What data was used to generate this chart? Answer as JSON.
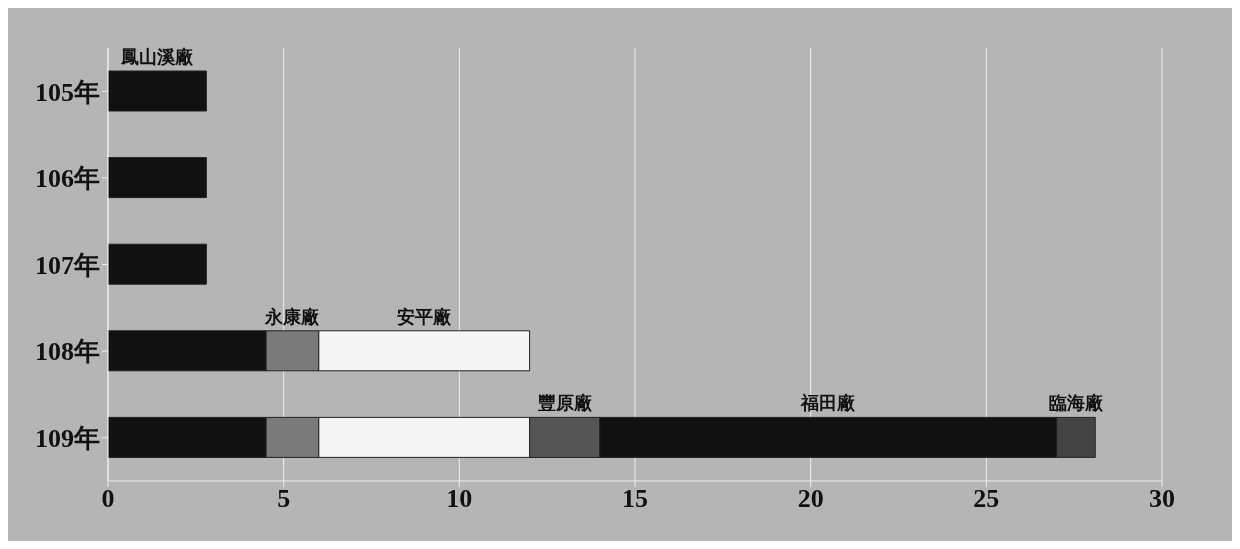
{
  "chart_data": {
    "type": "bar",
    "orientation": "horizontal",
    "stacked": true,
    "categories": [
      "105年",
      "106年",
      "107年",
      "108年",
      "109年"
    ],
    "series": [
      {
        "name": "鳳山溪廠",
        "color": "#111111",
        "values": [
          2.8,
          2.8,
          2.8,
          4.5,
          4.5
        ]
      },
      {
        "name": "永康廠",
        "color": "#7a7a7a",
        "values": [
          null,
          null,
          null,
          1.5,
          1.5
        ]
      },
      {
        "name": "安平廠",
        "color": "#f5f5f5",
        "values": [
          null,
          null,
          null,
          6,
          6
        ]
      },
      {
        "name": "豐原廠",
        "color": "#555555",
        "values": [
          null,
          null,
          null,
          null,
          2
        ]
      },
      {
        "name": "福田廠",
        "color": "#111111",
        "values": [
          null,
          null,
          null,
          null,
          13
        ]
      },
      {
        "name": "臨海廠",
        "color": "#444444",
        "values": [
          null,
          null,
          null,
          null,
          1.1
        ]
      }
    ],
    "xlim": [
      0,
      30
    ],
    "xticks": [
      0,
      5,
      10,
      15,
      20,
      25,
      30
    ],
    "grid": "x",
    "legend": false
  }
}
